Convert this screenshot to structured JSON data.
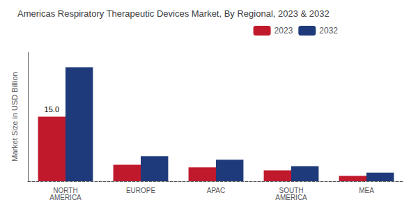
{
  "chart_data": {
    "type": "bar",
    "title": "Americas Respiratory Therapeutic Devices Market, By Regional, 2023 & 2032",
    "ylabel": "Market Size in USD Billion",
    "categories": [
      "NORTH\nAMERICA",
      "EUROPE",
      "APAC",
      "SOUTH\nAMERICA",
      "MEA"
    ],
    "series": [
      {
        "name": "2023",
        "color": "#c0192c",
        "values": [
          15.0,
          3.8,
          3.2,
          2.5,
          1.2
        ]
      },
      {
        "name": "2032",
        "color": "#1f3a7a",
        "values": [
          26.5,
          5.8,
          5.0,
          3.5,
          2.0
        ]
      }
    ],
    "annotations": [
      {
        "text": "15.0",
        "series": "2023",
        "x": "NORTH\nAMERICA",
        "y": 15.0
      }
    ],
    "ylim": [
      0,
      30
    ],
    "yticks": [],
    "tick_labels": "x",
    "grid": false,
    "legend": "upper right"
  }
}
